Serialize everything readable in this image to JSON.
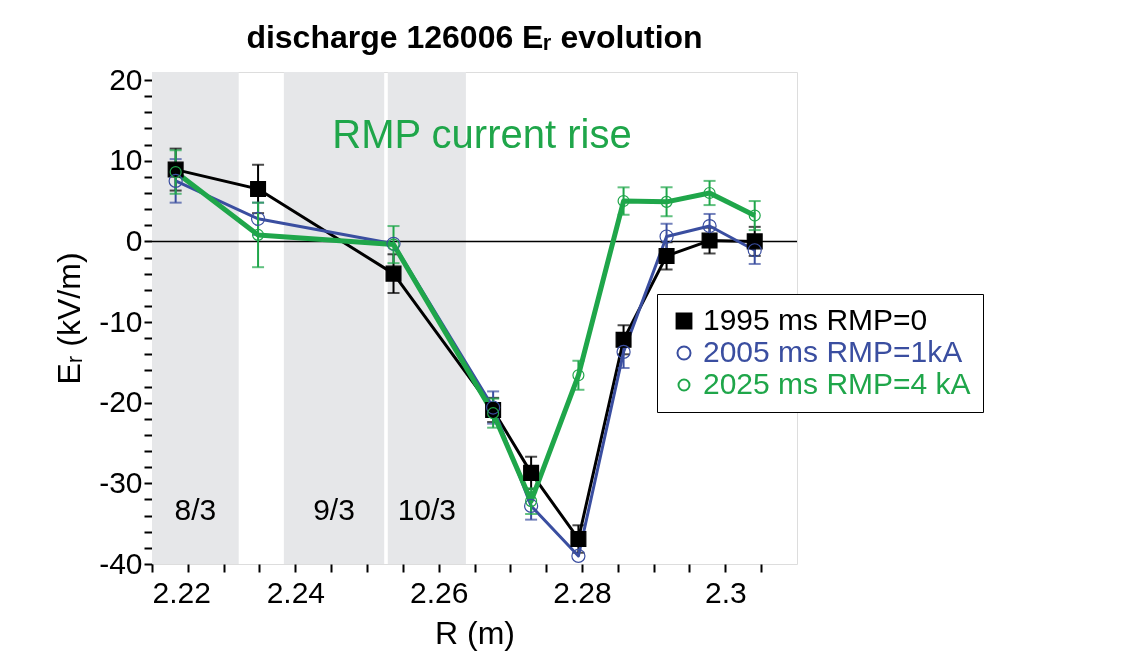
{
  "chart_data": {
    "type": "line",
    "title": "discharge 126006 Eᵣ evolution",
    "xlabel": "R (m)",
    "ylabel": "Eᵣ (kV/m)",
    "x": [
      2.2233,
      2.2348,
      2.2537,
      2.2676,
      2.2729,
      2.2795,
      2.2858,
      2.2918,
      2.2978,
      2.3041
    ],
    "series": [
      {
        "name": "1995 ms RMP=0",
        "color": "#000000",
        "marker": "square",
        "values": [
          8.9,
          6.5,
          -4.0,
          -20.9,
          -28.7,
          -36.9,
          -12.2,
          -1.8,
          0.1,
          0.0
        ],
        "errors": [
          2.6,
          3.0,
          2.4,
          1.5,
          2.0,
          1.7,
          1.8,
          1.7,
          1.6,
          1.8
        ]
      },
      {
        "name": "2005 ms RMP=1kA",
        "color": "#3a4ea0",
        "marker": "circle",
        "values": [
          7.5,
          2.8,
          -0.3,
          -20.6,
          -32.8,
          -39.0,
          -13.7,
          0.6,
          1.9,
          -1.1
        ],
        "errors": [
          2.7,
          2.0,
          null,
          2.0,
          1.7,
          null,
          2.0,
          1.6,
          1.5,
          1.7
        ]
      },
      {
        "name": "2025 ms RMP=4 kA",
        "color": "#1fa64a",
        "marker": "circle",
        "values": [
          8.6,
          0.8,
          -0.4,
          -21.3,
          -32.2,
          -16.6,
          5.0,
          4.9,
          6.0,
          3.2
        ],
        "errors": [
          2.7,
          4.0,
          2.3,
          1.8,
          1.6,
          1.8,
          1.7,
          1.8,
          1.5,
          1.8
        ]
      }
    ],
    "xlim": [
      2.22,
      2.31
    ],
    "xticks": [
      2.22,
      {
        "value": 2.225,
        "label": null
      },
      {
        "value": 2.23,
        "label": null
      },
      {
        "value": 2.235,
        "label": null
      },
      2.24,
      {
        "value": 2.245,
        "label": null
      },
      {
        "value": 2.25,
        "label": null
      },
      {
        "value": 2.255,
        "label": null
      },
      2.26,
      {
        "value": 2.265,
        "label": null
      },
      {
        "value": 2.27,
        "label": null
      },
      {
        "value": 2.275,
        "label": null
      },
      2.28,
      {
        "value": 2.285,
        "label": null
      },
      {
        "value": 2.29,
        "label": null
      },
      {
        "value": 2.295,
        "label": null
      },
      2.3,
      {
        "value": 2.305,
        "label": null
      }
    ],
    "ylim": [
      -40,
      21
    ],
    "yticks": [
      -40,
      {
        "value": -38,
        "label": null
      },
      {
        "value": -36,
        "label": null
      },
      {
        "value": -34,
        "label": null
      },
      {
        "value": -32,
        "label": null
      },
      -30,
      {
        "value": -28,
        "label": null
      },
      {
        "value": -26,
        "label": null
      },
      {
        "value": -24,
        "label": null
      },
      {
        "value": -22,
        "label": null
      },
      -20,
      {
        "value": -18,
        "label": null
      },
      {
        "value": -16,
        "label": null
      },
      {
        "value": -14,
        "label": null
      },
      {
        "value": -12,
        "label": null
      },
      -10,
      {
        "value": -8,
        "label": null
      },
      {
        "value": -6,
        "label": null
      },
      {
        "value": -4,
        "label": null
      },
      {
        "value": -2,
        "label": null
      },
      0,
      {
        "value": 2,
        "label": null
      },
      {
        "value": 4,
        "label": null
      },
      {
        "value": 6,
        "label": null
      },
      {
        "value": 8,
        "label": null
      },
      10,
      {
        "value": 12,
        "label": null
      },
      {
        "value": 14,
        "label": null
      },
      {
        "value": 16,
        "label": null
      },
      {
        "value": 18,
        "label": null
      },
      20
    ],
    "ref_lines": [
      {
        "axis": "y",
        "value": 0,
        "color": "#000000"
      }
    ],
    "bands": [
      {
        "axis": "x",
        "from": 2.22,
        "to": 2.2321,
        "label": "8/3",
        "color": "#e6e7e9"
      },
      {
        "axis": "x",
        "from": 2.2384,
        "to": 2.2524,
        "label": "9/3",
        "color": "#e6e7e9"
      },
      {
        "axis": "x",
        "from": 2.2529,
        "to": 2.2638,
        "label": "10/3",
        "color": "#e6e7e9"
      }
    ],
    "annotations": [
      "RMP current rise"
    ],
    "grid": false,
    "legend": "right"
  }
}
